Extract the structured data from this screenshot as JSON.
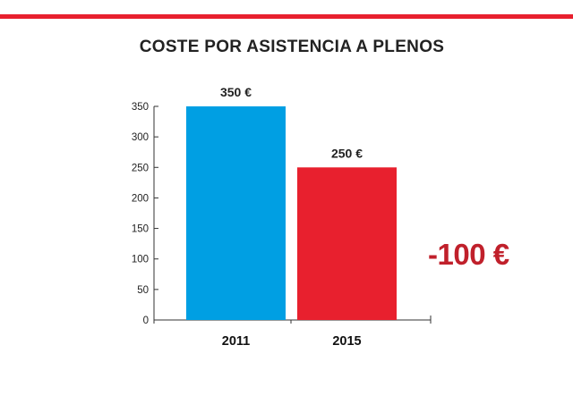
{
  "chart_data": {
    "type": "bar",
    "title": "COSTE POR ASISTENCIA A PLENOS",
    "categories": [
      "2011",
      "2015"
    ],
    "values": [
      350,
      250
    ],
    "data_labels": [
      "350 €",
      "250 €"
    ],
    "colors": [
      "#009fe3",
      "#e8202e"
    ],
    "ylim": [
      0,
      350
    ],
    "yticks": [
      0,
      50,
      100,
      150,
      200,
      250,
      300,
      350
    ],
    "xlabel": "",
    "ylabel": "",
    "grid": false,
    "annotation": "-100 €",
    "annotation_color": "#c0202b"
  },
  "accent_color": "#e8202e"
}
